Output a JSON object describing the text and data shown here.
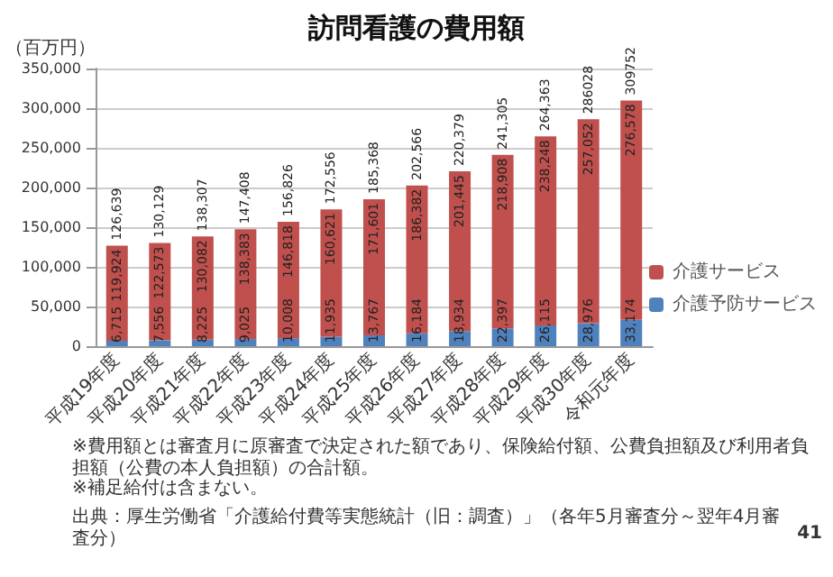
{
  "chart_data": {
    "type": "bar",
    "title": "訪問看護の費用額",
    "ylabel": "（百万円）",
    "categories": [
      "平成19年度",
      "平成20年度",
      "平成21年度",
      "平成22年度",
      "平成23年度",
      "平成24年度",
      "平成25年度",
      "平成26年度",
      "平成27年度",
      "平成28年度",
      "平成29年度",
      "平成30年度",
      "令和元年度"
    ],
    "series": [
      {
        "name": "介護予防サービス",
        "color": "#4f81bd",
        "values": [
          6715,
          7556,
          8225,
          9025,
          10008,
          11935,
          13767,
          16184,
          18934,
          22397,
          26115,
          28976,
          33174
        ],
        "value_labels": [
          "6,715",
          "7,556",
          "8,225",
          "9,025",
          "10,008",
          "11,935",
          "13,767",
          "16,184",
          "18,934",
          "22,397",
          "26,115",
          "28,976",
          "33,174"
        ]
      },
      {
        "name": "介護サービス",
        "color": "#c0504d",
        "values": [
          119924,
          122573,
          130082,
          138383,
          146818,
          160621,
          171601,
          186382,
          201445,
          218908,
          238248,
          257052,
          276578
        ],
        "value_labels": [
          "119,924",
          "122,573",
          "130,082",
          "138,383",
          "146,818",
          "160,621",
          "171,601",
          "186,382",
          "201,445",
          "218,908",
          "238,248",
          "257,052",
          "276,578"
        ]
      }
    ],
    "stacked": true,
    "totals": [
      "126,639",
      "130,129",
      "138,307",
      "147,408",
      "156,826",
      "172,556",
      "185,368",
      "202,566",
      "220,379",
      "241,305",
      "264,363",
      "286028",
      "309752"
    ],
    "ylim": [
      0,
      350000
    ],
    "yticks": [
      0,
      {
        "value": 50000,
        "label": "50,000"
      },
      {
        "value": 100000,
        "label": "100,000"
      },
      {
        "value": 150000,
        "label": "150,000"
      },
      {
        "value": 200000,
        "label": "200,000"
      },
      {
        "value": 250000,
        "label": "250,000"
      },
      {
        "value": 300000,
        "label": "300,000"
      },
      {
        "value": 350000,
        "label": "350,000"
      }
    ],
    "grid": "y",
    "legend": "right",
    "annotations": [
      "※費用額とは審査月に原審査で決定された額であり、保険給付額、公費負担額及び利用者負担額（公費の本人負担額）の合計額。",
      "※補足給付は含まない。",
      "出典：厚生労働省「介護給付費等実態統計（旧：調査）」（各年5月審査分～翌年4月審査分）",
      "41"
    ]
  }
}
